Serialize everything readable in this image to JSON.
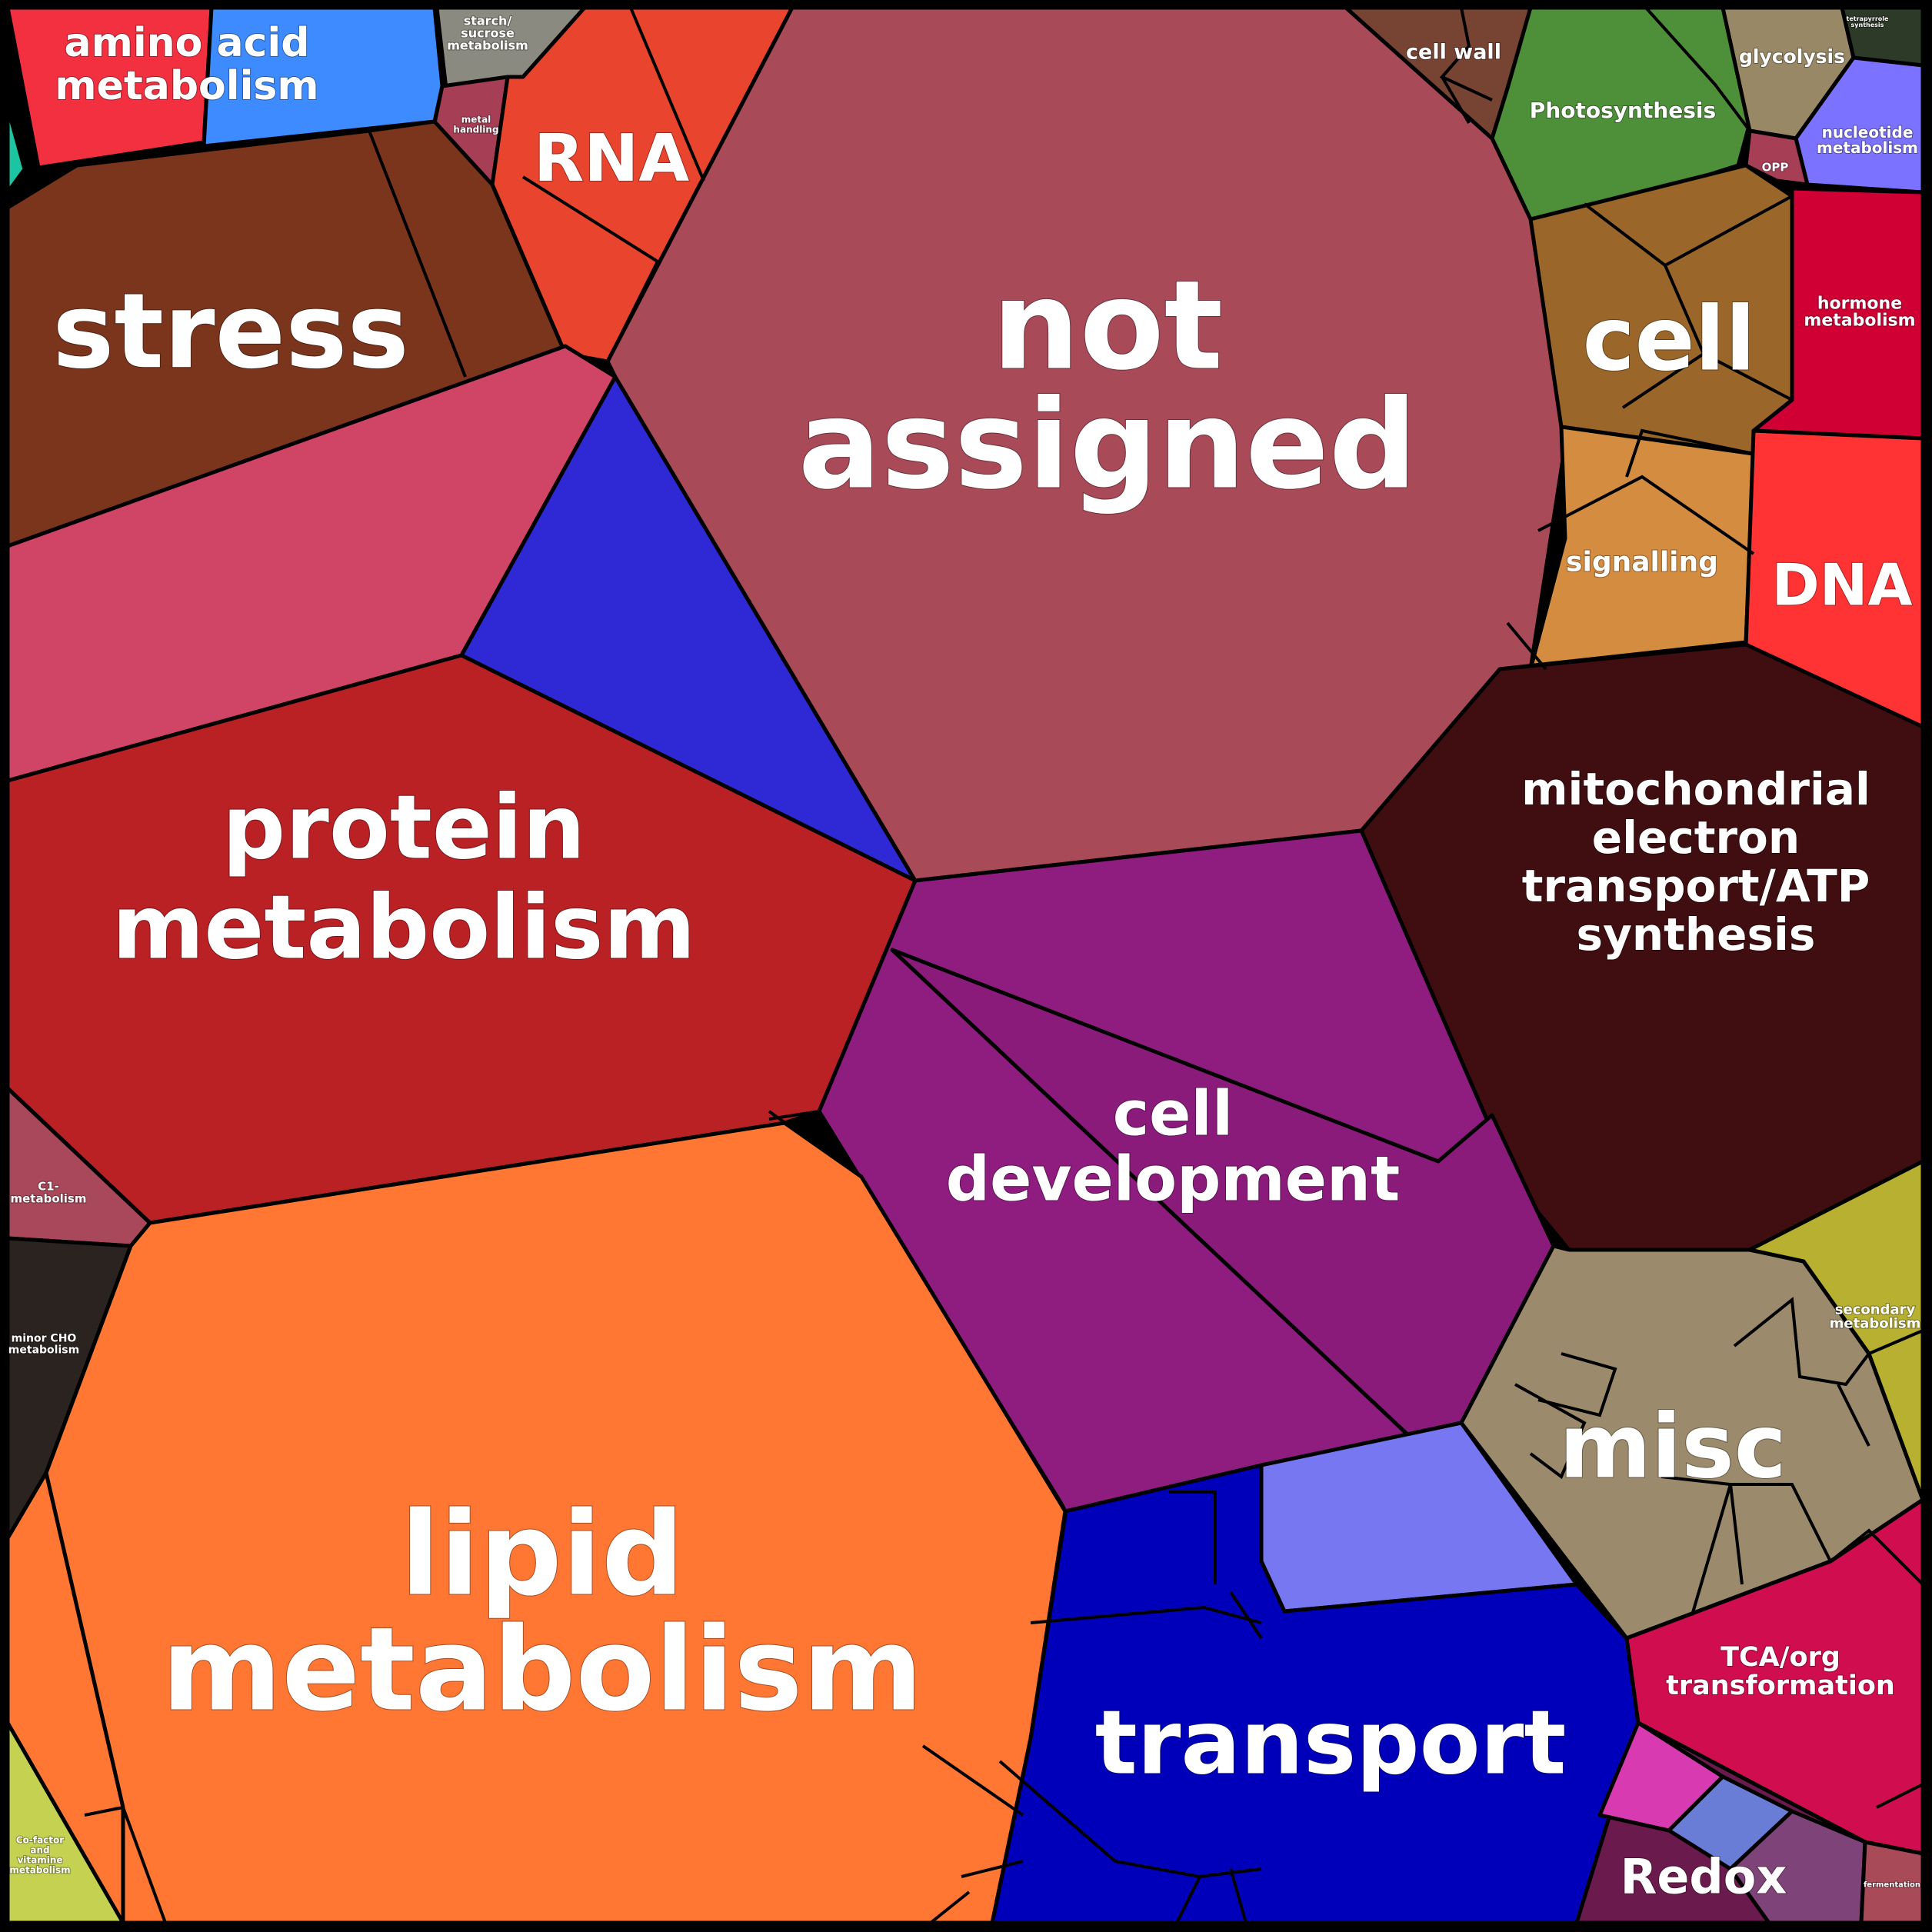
{
  "chart_data": {
    "type": "voronoi-treemap",
    "title": "",
    "categories": [
      {
        "name": "not assigned",
        "lines": [
          "not",
          "assigned"
        ],
        "color": "#A84A58"
      },
      {
        "name": "stress",
        "lines": [
          "stress"
        ],
        "color": "#7A351C"
      },
      {
        "name": "protein metabolism",
        "lines": [
          "protein",
          "metabolism"
        ],
        "color": "#B92125"
      },
      {
        "name": "lipid metabolism",
        "lines": [
          "lipid",
          "metabolism"
        ],
        "color": "#FF7733"
      },
      {
        "name": "cell development",
        "lines": [
          "cell",
          "development"
        ],
        "color": "#8E1D7F"
      },
      {
        "name": "transport",
        "lines": [
          "transport"
        ],
        "color": "#0000BA"
      },
      {
        "name": "mitochondrial electron transport/ATP synthesis",
        "lines": [
          "mitochondrial",
          "electron",
          "transport/ATP",
          "synthesis"
        ],
        "color": "#400E10"
      },
      {
        "name": "misc",
        "lines": [
          "misc"
        ],
        "color": "#9C8A6C"
      },
      {
        "name": "cell",
        "lines": [
          "cell"
        ],
        "color": "#9A6629"
      },
      {
        "name": "RNA",
        "lines": [
          "RNA"
        ],
        "color": "#E8442E"
      },
      {
        "name": "DNA",
        "lines": [
          "DNA"
        ],
        "color": "#FF3333"
      },
      {
        "name": "amino acid metabolism",
        "lines": [
          "amino acid",
          "metabolism"
        ],
        "color": "#F23040"
      },
      {
        "name": "signalling",
        "lines": [
          "signalling"
        ],
        "color": "#D38C40"
      },
      {
        "name": "Photosynthesis",
        "lines": [
          "Photosynthesis"
        ],
        "color": "#4E8F3A"
      },
      {
        "name": "hormone metabolism",
        "lines": [
          "hormone",
          "metabolism"
        ],
        "color": "#D00034"
      },
      {
        "name": "TCA/org transformation",
        "lines": [
          "TCA/org",
          "transformation"
        ],
        "color": "#CF0D4F"
      },
      {
        "name": "Redox",
        "lines": [
          "Redox"
        ],
        "color": "#6A1A4C"
      },
      {
        "name": "cell wall",
        "lines": [
          "cell wall"
        ],
        "color": "#774333"
      },
      {
        "name": "glycolysis",
        "lines": [
          "glycolysis"
        ],
        "color": "#998866"
      },
      {
        "name": "nucleotide metabolism",
        "lines": [
          "nucleotide",
          "metabolism"
        ],
        "color": "#7B72FF"
      },
      {
        "name": "secondary metabolism",
        "lines": [
          "secondary",
          "metabolism"
        ],
        "color": "#B8B030"
      },
      {
        "name": "starch/sucrose metabolism",
        "lines": [
          "starch/",
          "sucrose",
          "metabolism"
        ],
        "color": "#8A8A80"
      },
      {
        "name": "metal handling",
        "lines": [
          "metal",
          "handling"
        ],
        "color": "#A63E56"
      },
      {
        "name": "OPP",
        "lines": [
          "OPP"
        ],
        "color": "#A63E56"
      },
      {
        "name": "C1-metabolism",
        "lines": [
          "C1-",
          "metabolism"
        ],
        "color": "#A8485A"
      },
      {
        "name": "minor CHO metabolism",
        "lines": [
          "minor CHO",
          "metabolism"
        ],
        "color": "#2A2320"
      },
      {
        "name": "Co-factor and vitamine metabolism",
        "lines": [
          "Co-factor",
          "and",
          "vitamine",
          "metabolism"
        ],
        "color": "#C5D150"
      },
      {
        "name": "fermentation",
        "lines": [
          "fermentation"
        ],
        "color": "#A84A58"
      },
      {
        "name": "tetrapyrrole synthesis",
        "lines": [
          "tetrapyrrole",
          "synthesis"
        ],
        "color": "#2D3A28"
      }
    ]
  }
}
